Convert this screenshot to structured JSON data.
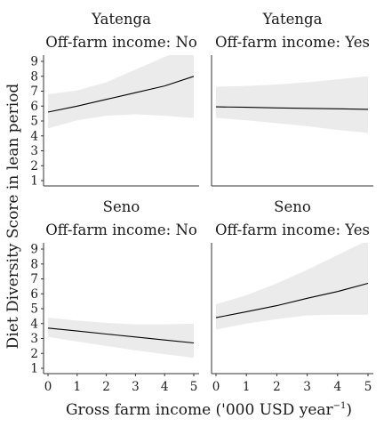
{
  "figure": {
    "xlabel": "Gross farm income ('000 USD year",
    "xlabel_sup": "−1",
    "xlabel_end": ")",
    "ylabel": "Diet Diversity Score in lean period"
  },
  "chart_data": [
    {
      "type": "line",
      "title": "Yatenga",
      "subtitle": "Off-farm income: No",
      "x": [
        0,
        1,
        2,
        3,
        4,
        5
      ],
      "series": [
        {
          "values": [
            5.6,
            6.0,
            6.45,
            6.9,
            7.35,
            8.0
          ]
        }
      ],
      "ci_lower": [
        4.5,
        5.05,
        5.35,
        5.45,
        5.35,
        5.2
      ],
      "ci_upper": [
        6.8,
        7.05,
        7.6,
        8.45,
        9.3,
        10.0
      ],
      "xlim": [
        0,
        5
      ],
      "ylim": [
        1,
        9
      ],
      "xticks": [
        "0",
        "1",
        "2",
        "3",
        "4",
        "5"
      ],
      "yticks": [
        "1",
        "2",
        "3",
        "4",
        "5",
        "6",
        "7",
        "8",
        "9"
      ],
      "grid": false
    },
    {
      "type": "line",
      "title": "Yatenga",
      "subtitle": "Off-farm income: Yes",
      "x": [
        0,
        1,
        2,
        3,
        4,
        5
      ],
      "series": [
        {
          "values": [
            5.95,
            5.92,
            5.88,
            5.85,
            5.82,
            5.78
          ]
        }
      ],
      "ci_lower": [
        5.2,
        5.05,
        4.85,
        4.65,
        4.4,
        4.2
      ],
      "ci_upper": [
        7.3,
        7.35,
        7.45,
        7.6,
        7.8,
        8.0
      ],
      "xlim": [
        0,
        5
      ],
      "ylim": [
        1,
        9
      ],
      "xticks": [
        "0",
        "1",
        "2",
        "3",
        "4",
        "5"
      ],
      "yticks": [
        "1",
        "2",
        "3",
        "4",
        "5",
        "6",
        "7",
        "8",
        "9"
      ],
      "grid": false
    },
    {
      "type": "line",
      "title": "Seno",
      "subtitle": "Off-farm income: No",
      "x": [
        0,
        1,
        2,
        3,
        4,
        5
      ],
      "series": [
        {
          "values": [
            3.7,
            3.5,
            3.3,
            3.1,
            2.9,
            2.7
          ]
        }
      ],
      "ci_lower": [
        3.1,
        2.8,
        2.5,
        2.2,
        1.95,
        1.7
      ],
      "ci_upper": [
        4.4,
        4.2,
        4.05,
        3.95,
        3.95,
        4.0
      ],
      "xlim": [
        0,
        5
      ],
      "ylim": [
        1,
        9
      ],
      "xticks": [
        "0",
        "1",
        "2",
        "3",
        "4",
        "5"
      ],
      "yticks": [
        "1",
        "2",
        "3",
        "4",
        "5",
        "6",
        "7",
        "8",
        "9"
      ],
      "grid": false
    },
    {
      "type": "line",
      "title": "Seno",
      "subtitle": "Off-farm income: Yes",
      "x": [
        0,
        1,
        2,
        3,
        4,
        5
      ],
      "series": [
        {
          "values": [
            4.4,
            4.8,
            5.2,
            5.7,
            6.15,
            6.7
          ]
        }
      ],
      "ci_lower": [
        3.6,
        4.0,
        4.3,
        4.55,
        4.6,
        4.6
      ],
      "ci_upper": [
        5.3,
        5.9,
        6.7,
        7.6,
        8.6,
        9.6
      ],
      "xlim": [
        0,
        5
      ],
      "ylim": [
        1,
        9
      ],
      "xticks": [
        "0",
        "1",
        "2",
        "3",
        "4",
        "5"
      ],
      "yticks": [
        "1",
        "2",
        "3",
        "4",
        "5",
        "6",
        "7",
        "8",
        "9"
      ],
      "grid": false
    }
  ]
}
